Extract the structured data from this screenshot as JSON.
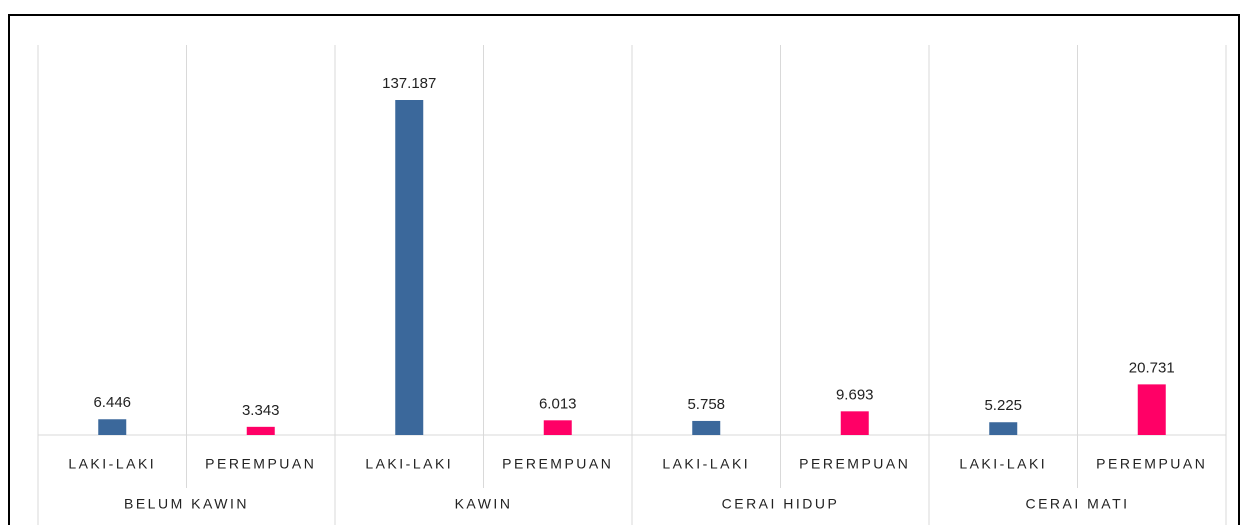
{
  "chart_data": {
    "type": "bar",
    "categories": [
      "LAKI-LAKI",
      "PEREMPUAN",
      "LAKI-LAKI",
      "PEREMPUAN",
      "LAKI-LAKI",
      "PEREMPUAN",
      "LAKI-LAKI",
      "PEREMPUAN"
    ],
    "groups": [
      "BELUM KAWIN",
      "KAWIN",
      "CERAI HIDUP",
      "CERAI MATI"
    ],
    "values": [
      6446,
      3343,
      137187,
      6013,
      5758,
      9693,
      5225,
      20731
    ],
    "value_labels": [
      "6.446",
      "3.343",
      "137.187",
      "6.013",
      "5.758",
      "9.693",
      "5.225",
      "20.731"
    ],
    "colors": [
      "#3b689b",
      "#ff0066",
      "#3b689b",
      "#ff0066",
      "#3b689b",
      "#ff0066",
      "#3b689b",
      "#ff0066"
    ]
  }
}
